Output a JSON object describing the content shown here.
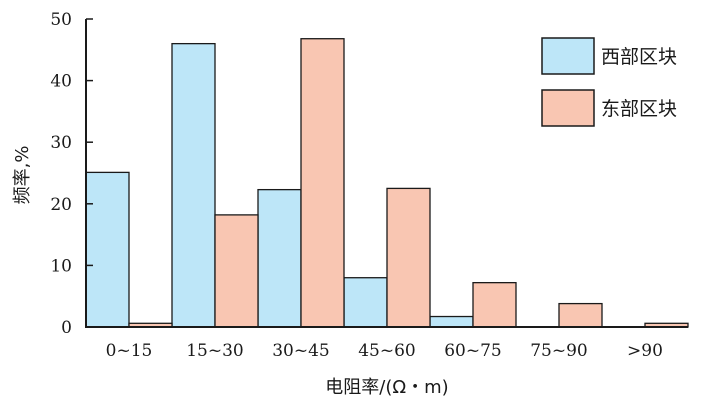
{
  "chart_data": {
    "type": "bar",
    "title": "",
    "xlabel": "电阻率/(Ω・m)",
    "ylabel": "频率,%",
    "categories": [
      "0~15",
      "15~30",
      "30~45",
      "45~60",
      "60~75",
      "75~90",
      ">90"
    ],
    "ylim": [
      0,
      50
    ],
    "yticks": [
      0,
      10,
      20,
      30,
      40,
      50
    ],
    "grid": false,
    "legend_position": "top-right",
    "series": [
      {
        "name": "西部区块",
        "color": "#bde6f8",
        "values": [
          25.1,
          46.0,
          22.3,
          8.0,
          1.7,
          0.0,
          0.0
        ]
      },
      {
        "name": "东部区块",
        "color": "#f9c6b2",
        "values": [
          0.6,
          18.2,
          46.8,
          22.5,
          7.2,
          3.8,
          0.6
        ]
      }
    ]
  }
}
